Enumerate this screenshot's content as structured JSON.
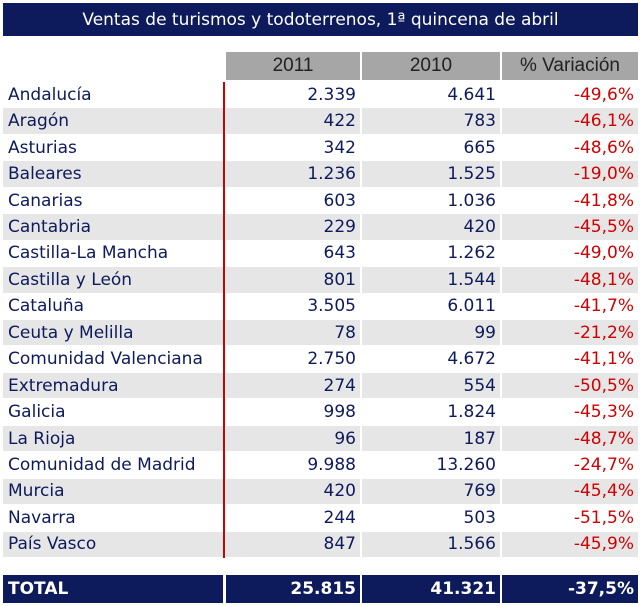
{
  "title": "Ventas de turismos y todoterrenos, 1ª quincena de abril",
  "table": {
    "columns": [
      "2011",
      "2010",
      "% Variación"
    ],
    "rows": [
      [
        "Andalucía",
        "2.339",
        "4.641",
        "-49,6%"
      ],
      [
        "Aragón",
        "422",
        "783",
        "-46,1%"
      ],
      [
        "Asturias",
        "342",
        "665",
        "-48,6%"
      ],
      [
        "Baleares",
        "1.236",
        "1.525",
        "-19,0%"
      ],
      [
        "Canarias",
        "603",
        "1.036",
        "-41,8%"
      ],
      [
        "Cantabria",
        "229",
        "420",
        "-45,5%"
      ],
      [
        "Castilla-La Mancha",
        "643",
        "1.262",
        "-49,0%"
      ],
      [
        "Castilla y León",
        "801",
        "1.544",
        "-48,1%"
      ],
      [
        "Cataluña",
        "3.505",
        "6.011",
        "-41,7%"
      ],
      [
        "Ceuta y Melilla",
        "78",
        "99",
        "-21,2%"
      ],
      [
        "Comunidad Valenciana",
        "2.750",
        "4.672",
        "-41,1%"
      ],
      [
        "Extremadura",
        "274",
        "554",
        "-50,5%"
      ],
      [
        "Galicia",
        "998",
        "1.824",
        "-45,3%"
      ],
      [
        "La Rioja",
        "96",
        "187",
        "-48,7%"
      ],
      [
        "Comunidad de Madrid",
        "9.988",
        "13.260",
        "-24,7%"
      ],
      [
        "Murcia",
        "420",
        "769",
        "-45,4%"
      ],
      [
        "Navarra",
        "244",
        "503",
        "-51,5%"
      ],
      [
        "País Vasco",
        "847",
        "1.566",
        "-45,9%"
      ]
    ],
    "total": [
      "TOTAL",
      "25.815",
      "41.321",
      "-37,5%"
    ]
  }
}
